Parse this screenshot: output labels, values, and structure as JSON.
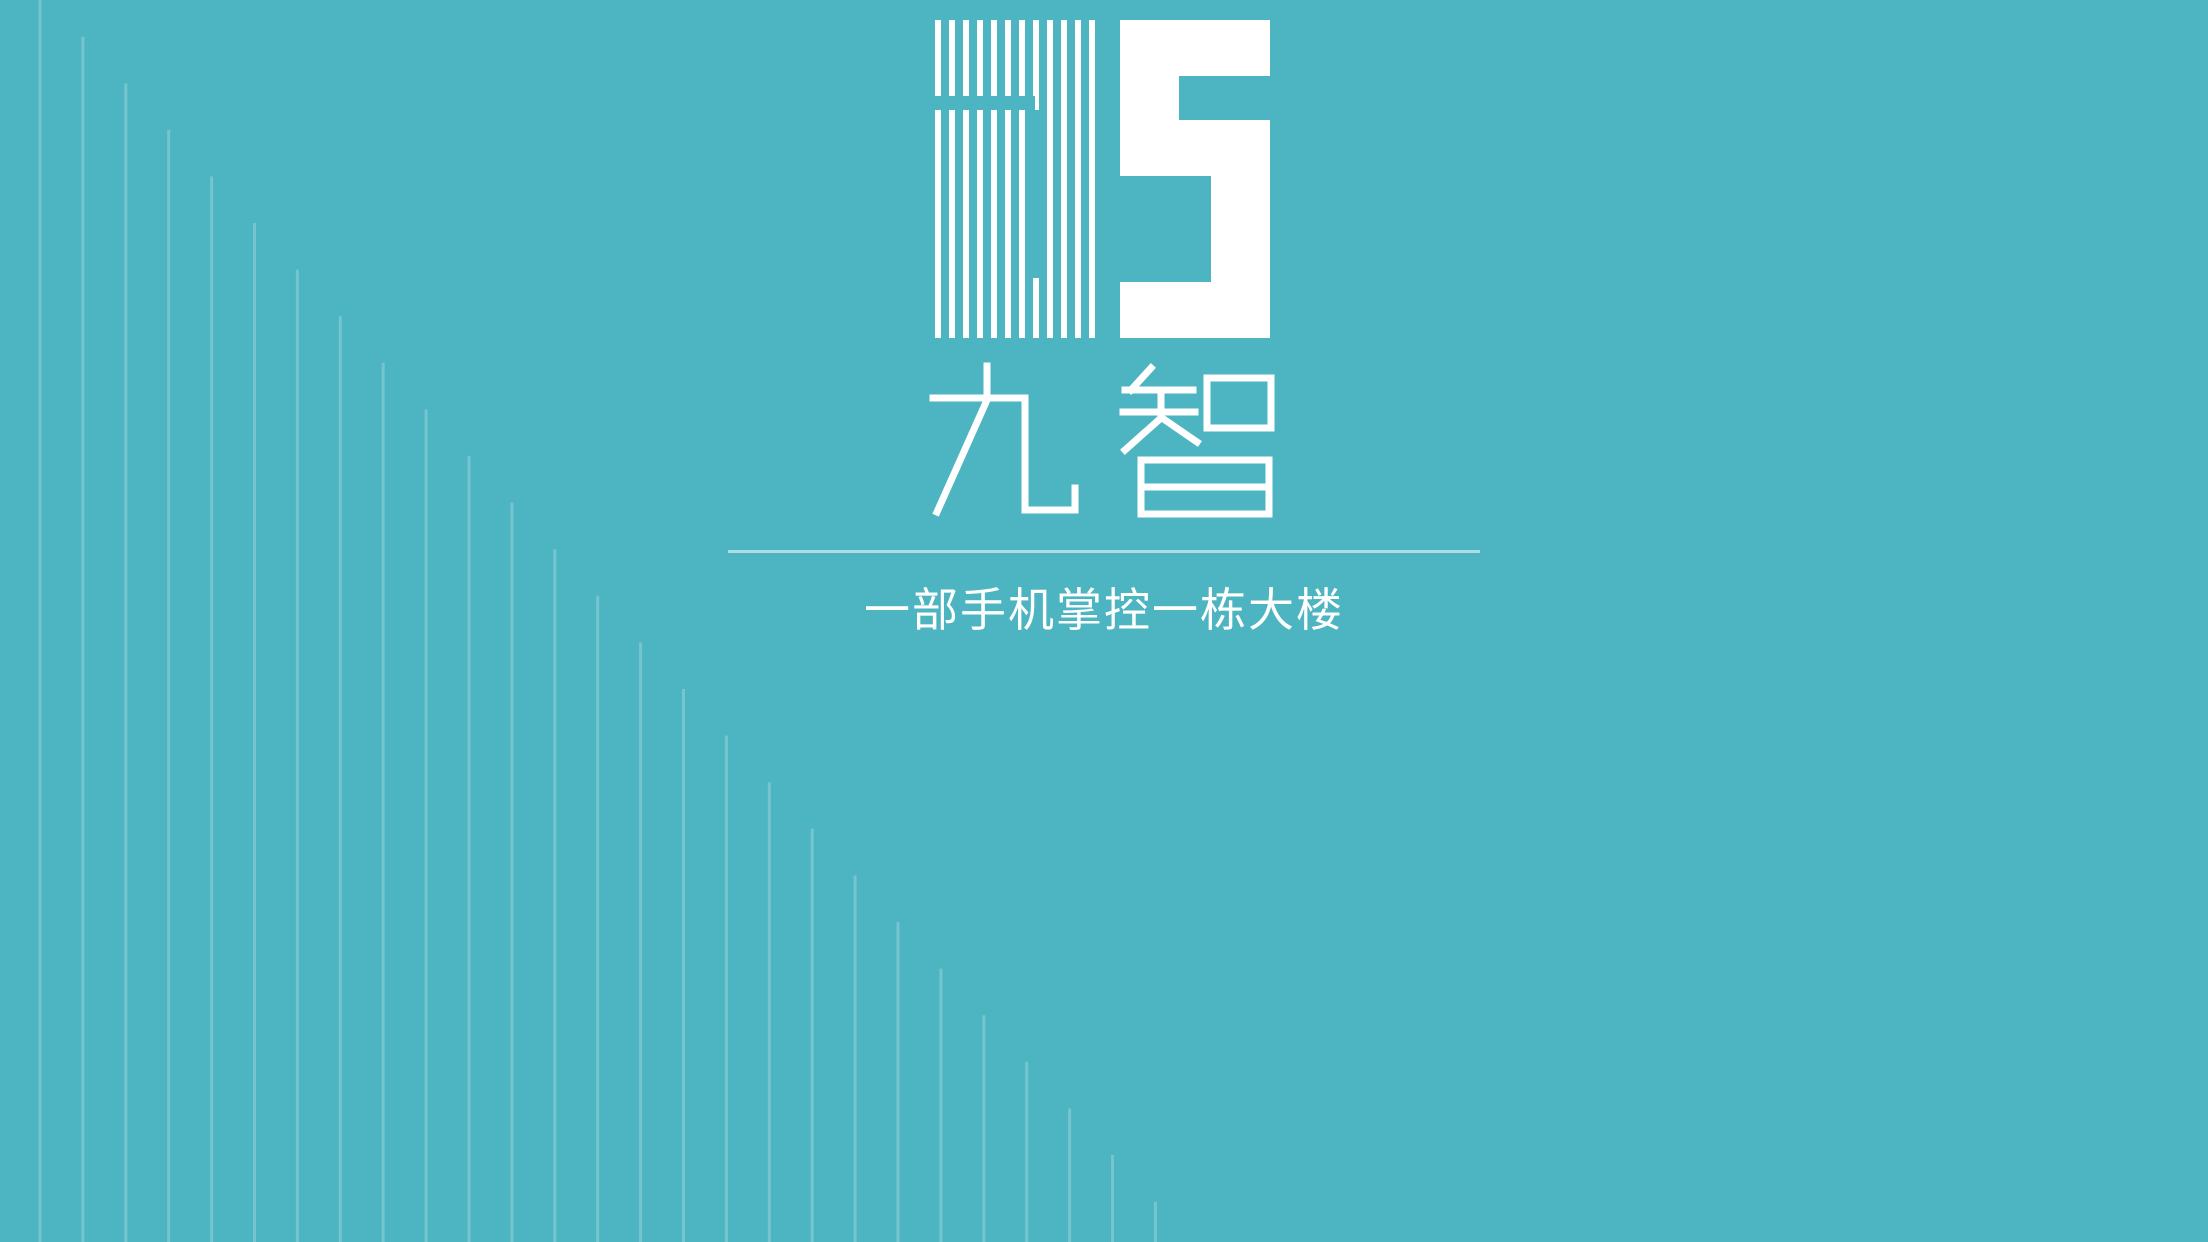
{
  "app": {
    "brand_name": "九智",
    "logo_mark": "JZ",
    "tagline": "一部手机掌控一栋大楼"
  },
  "colors": {
    "background": "#4db5c1",
    "foreground": "#ffffff"
  }
}
